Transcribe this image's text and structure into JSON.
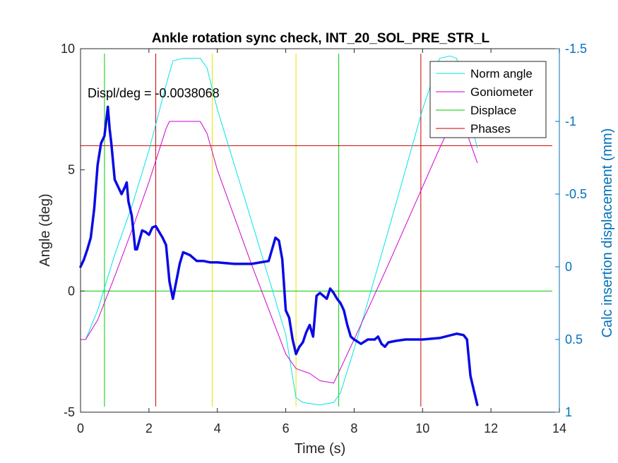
{
  "chart_data": {
    "type": "line",
    "title": "Ankle rotation sync check, INT_20_SOL_PRE_STR_L",
    "xlabel": "Time (s)",
    "ylabel": "Angle (deg)",
    "ylabel_right": "Calc insertion displacement (mm)",
    "xlim": [
      0,
      14
    ],
    "ylim": [
      -5,
      10
    ],
    "ylim_right": [
      1,
      -1.5
    ],
    "right_axis_reversed": true,
    "xticks": [
      "0",
      "2",
      "4",
      "6",
      "8",
      "10",
      "12",
      "14"
    ],
    "yticks": [
      "-5",
      "0",
      "5",
      "10"
    ],
    "yticks_right": [
      "-1.5",
      "-1",
      "-0.5",
      "0",
      "0.5",
      "1"
    ],
    "annotation": "Displ/deg = -0.0038068",
    "legend_position": "top-right",
    "legend": [
      "Norm angle",
      "Goniometer",
      "Displace",
      "Phases"
    ],
    "colors": {
      "norm_angle": "#00E5E5",
      "goniometer": "#D000D0",
      "displace": "#00CC00",
      "phases": "#CC0000",
      "phase_yellow": "#E5E500",
      "displacement_trace": "#0A0AE6",
      "right_axis": "#0072BD"
    },
    "series": [
      {
        "name": "Norm angle",
        "axis": "left",
        "x": [
          0,
          0.15,
          0.5,
          1.0,
          1.5,
          2.0,
          2.5,
          2.7,
          3.0,
          3.5,
          3.7,
          4.0,
          5.0,
          6.0,
          6.3,
          6.5,
          7.0,
          7.4,
          7.6,
          8.0,
          9.0,
          10.0,
          10.5,
          10.8,
          11.0,
          11.4,
          11.6
        ],
        "y": [
          -2.0,
          -2.0,
          -0.8,
          1.5,
          3.5,
          5.8,
          8.5,
          9.5,
          9.6,
          9.6,
          9.2,
          7.5,
          2.9,
          -1.8,
          -4.4,
          -4.6,
          -4.7,
          -4.6,
          -4.2,
          -2.4,
          2.5,
          7.5,
          9.6,
          9.7,
          9.6,
          7.0,
          5.9
        ]
      },
      {
        "name": "Goniometer",
        "axis": "left",
        "x": [
          0,
          0.15,
          0.5,
          1.0,
          1.5,
          2.0,
          2.5,
          2.6,
          3.0,
          3.5,
          3.7,
          4.0,
          5.0,
          6.0,
          6.3,
          6.7,
          7.0,
          7.4,
          7.6,
          8.0,
          9.0,
          10.0,
          10.5,
          11.0,
          11.3,
          11.6
        ],
        "y": [
          -2.0,
          -2.0,
          -1.2,
          0.6,
          2.5,
          4.5,
          6.7,
          7.0,
          7.0,
          7.0,
          6.5,
          5.0,
          1.1,
          -2.6,
          -3.2,
          -3.4,
          -3.7,
          -3.8,
          -3.2,
          -2.0,
          1.1,
          4.3,
          5.9,
          7.4,
          6.5,
          5.3
        ]
      },
      {
        "name": "Displacement",
        "axis": "right",
        "x": [
          0,
          0.1,
          0.2,
          0.3,
          0.4,
          0.5,
          0.6,
          0.7,
          0.8,
          0.85,
          0.9,
          1.0,
          1.1,
          1.2,
          1.3,
          1.35,
          1.4,
          1.5,
          1.6,
          1.65,
          1.8,
          1.9,
          2.0,
          2.1,
          2.2,
          2.3,
          2.4,
          2.5,
          2.6,
          2.7,
          2.8,
          2.9,
          3.0,
          3.2,
          3.4,
          3.6,
          3.8,
          4.0,
          4.5,
          5.0,
          5.5,
          5.7,
          5.8,
          5.9,
          6.0,
          6.1,
          6.2,
          6.3,
          6.4,
          6.5,
          6.6,
          6.7,
          6.8,
          6.9,
          7.0,
          7.1,
          7.2,
          7.3,
          7.4,
          7.5,
          7.6,
          7.7,
          7.8,
          7.9,
          8.0,
          8.2,
          8.4,
          8.6,
          8.7,
          8.8,
          8.9,
          9.0,
          9.2,
          9.5,
          10.0,
          10.5,
          11.0,
          11.2,
          11.3,
          11.4,
          11.5,
          11.6
        ],
        "y": [
          0.0,
          -0.05,
          -0.12,
          -0.2,
          -0.4,
          -0.7,
          -0.85,
          -0.9,
          -1.1,
          -0.95,
          -0.85,
          -0.6,
          -0.55,
          -0.5,
          -0.55,
          -0.58,
          -0.45,
          -0.35,
          -0.12,
          -0.12,
          -0.25,
          -0.24,
          -0.22,
          -0.27,
          -0.28,
          -0.24,
          -0.2,
          -0.15,
          0.1,
          0.22,
          0.1,
          -0.02,
          -0.1,
          -0.08,
          -0.04,
          -0.04,
          -0.03,
          -0.03,
          -0.02,
          -0.02,
          -0.04,
          -0.2,
          -0.18,
          -0.05,
          0.3,
          0.35,
          0.5,
          0.6,
          0.55,
          0.52,
          0.45,
          0.4,
          0.48,
          0.2,
          0.18,
          0.2,
          0.22,
          0.15,
          0.18,
          0.22,
          0.25,
          0.3,
          0.4,
          0.48,
          0.5,
          0.53,
          0.5,
          0.5,
          0.48,
          0.53,
          0.55,
          0.52,
          0.51,
          0.5,
          0.5,
          0.49,
          0.46,
          0.47,
          0.5,
          0.75,
          0.85,
          0.95
        ]
      }
    ],
    "horizontal_lines": [
      {
        "legend": "Displace",
        "y": 0,
        "color": "#00CC00"
      },
      {
        "legend": "Phases",
        "y": 6,
        "color": "#CC0000"
      }
    ],
    "vertical_lines": [
      {
        "x": 0.7,
        "color": "#00CC00"
      },
      {
        "x": 2.2,
        "color": "#CC0000"
      },
      {
        "x": 3.85,
        "color": "#E5E500"
      },
      {
        "x": 6.3,
        "color": "#E5E500"
      },
      {
        "x": 7.55,
        "color": "#00CC00"
      },
      {
        "x": 9.95,
        "color": "#CC0000"
      }
    ]
  }
}
